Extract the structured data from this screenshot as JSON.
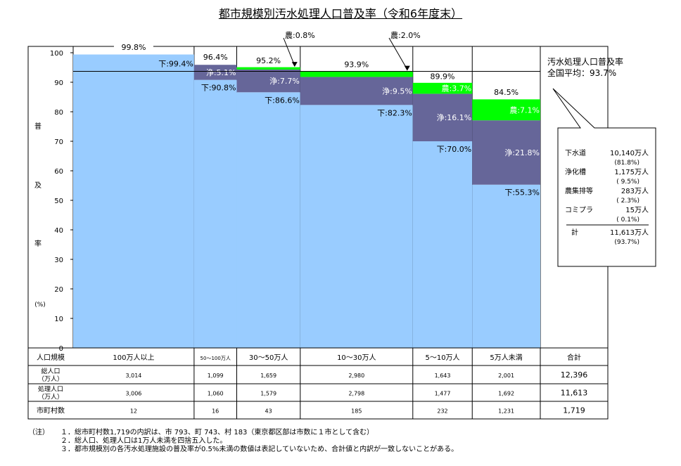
{
  "title": "都市規模別汚水処理人口普及率（令和6年度末）",
  "colors": {
    "sewer": "#99ccff",
    "johkaso": "#666699",
    "farm": "#00ff00",
    "frame": "#000000"
  },
  "chart_data": {
    "type": "bar",
    "ylim": [
      0,
      100
    ],
    "yticks": [
      "0",
      "10",
      "20",
      "30",
      "40",
      "50",
      "60",
      "70",
      "80",
      "90",
      "100"
    ],
    "ylabel_chars": [
      "普",
      "及",
      "率"
    ],
    "yunit": "(%)",
    "average_value": 93.7,
    "average_label_1": "汚水処理人口普及率",
    "average_label_2": "全国平均：93.7%",
    "bars": [
      {
        "category": "100万人以上",
        "served_population": 3006,
        "total_label": "99.8%",
        "total": 99.8,
        "segments": [
          {
            "type": "sewer",
            "value": 99.4,
            "label": "下:99.4%"
          }
        ]
      },
      {
        "category": "50～100万人",
        "served_population": 1060,
        "total_label": "96.4%",
        "total": 96.4,
        "segments": [
          {
            "type": "sewer",
            "value": 90.8,
            "label": "下:90.8%"
          },
          {
            "type": "johkaso",
            "value": 5.1,
            "label": "浄:5.1%"
          }
        ]
      },
      {
        "category": "30～50万人",
        "served_population": 1579,
        "total_label": "95.2%",
        "total": 95.2,
        "segments": [
          {
            "type": "sewer",
            "value": 86.6,
            "label": "下:86.6%"
          },
          {
            "type": "johkaso",
            "value": 7.7,
            "label": "浄:7.7%"
          },
          {
            "type": "farm",
            "value": 0.8,
            "label": "農:0.8%"
          }
        ]
      },
      {
        "category": "10～30万人",
        "served_population": 2798,
        "total_label": "93.9%",
        "total": 93.9,
        "segments": [
          {
            "type": "sewer",
            "value": 82.3,
            "label": "下:82.3%"
          },
          {
            "type": "johkaso",
            "value": 9.5,
            "label": "浄:9.5%"
          },
          {
            "type": "farm",
            "value": 2.0,
            "label": "農:2.0%"
          }
        ]
      },
      {
        "category": "5～10万人",
        "served_population": 1477,
        "total_label": "89.9%",
        "total": 89.9,
        "segments": [
          {
            "type": "sewer",
            "value": 70.0,
            "label": "下:70.0%"
          },
          {
            "type": "johkaso",
            "value": 16.1,
            "label": "浄:16.1%"
          },
          {
            "type": "farm",
            "value": 3.7,
            "label": "農:3.7%"
          }
        ]
      },
      {
        "category": "5万人未満",
        "served_population": 1692,
        "total_label": "84.5%",
        "total": 84.5,
        "segments": [
          {
            "type": "sewer",
            "value": 55.3,
            "label": "下:55.3%"
          },
          {
            "type": "johkaso",
            "value": 21.8,
            "label": "浄:21.8%"
          },
          {
            "type": "farm",
            "value": 7.1,
            "label": "農:7.1%"
          }
        ]
      }
    ]
  },
  "summary_box": {
    "rows": [
      {
        "name": "下水道",
        "value": "10,140万人",
        "pct": "(81.8%)"
      },
      {
        "name": "浄化槽",
        "value": "1,175万人",
        "pct": "( 9.5%)"
      },
      {
        "name": "農集排等",
        "value": "283万人",
        "pct": "( 2.3%)"
      },
      {
        "name": "コミプラ",
        "value": "15万人",
        "pct": "( 0.1%)"
      }
    ],
    "total": {
      "name": "計",
      "value": "11,613万人",
      "pct": "(93.7%)"
    }
  },
  "table": {
    "header_label": "人口規模",
    "columns": [
      "100万人以上",
      "50～100万人",
      "30～50万人",
      "10～30万人",
      "5～10万人",
      "5万人未満",
      "合計"
    ],
    "rows": [
      {
        "label_1": "総人口",
        "label_2": "（万人）",
        "values": [
          "3,014",
          "1,099",
          "1,659",
          "2,980",
          "1,643",
          "2,001",
          "12,396"
        ]
      },
      {
        "label_1": "処理人口",
        "label_2": "（万人）",
        "values": [
          "3,006",
          "1,060",
          "1,579",
          "2,798",
          "1,477",
          "1,692",
          "11,613"
        ]
      },
      {
        "label_1": "市町村数",
        "label_2": "",
        "values": [
          "12",
          "16",
          "43",
          "185",
          "232",
          "1,231",
          "1,719"
        ]
      }
    ]
  },
  "notes": [
    {
      "head": "（注）",
      "text": "１．総市町村数1,719の内訳は、市 793、町 743、村 183（東京都区部は市数に１市として含む）"
    },
    {
      "head": "",
      "text": "２．総人口、処理人口は1万人未満を四捨五入した。"
    },
    {
      "head": "",
      "text": "３．都市規模別の各汚水処理施設の普及率が0.5%未満の数値は表記していないため、合計値と内訳が一致しないことがある。"
    }
  ]
}
